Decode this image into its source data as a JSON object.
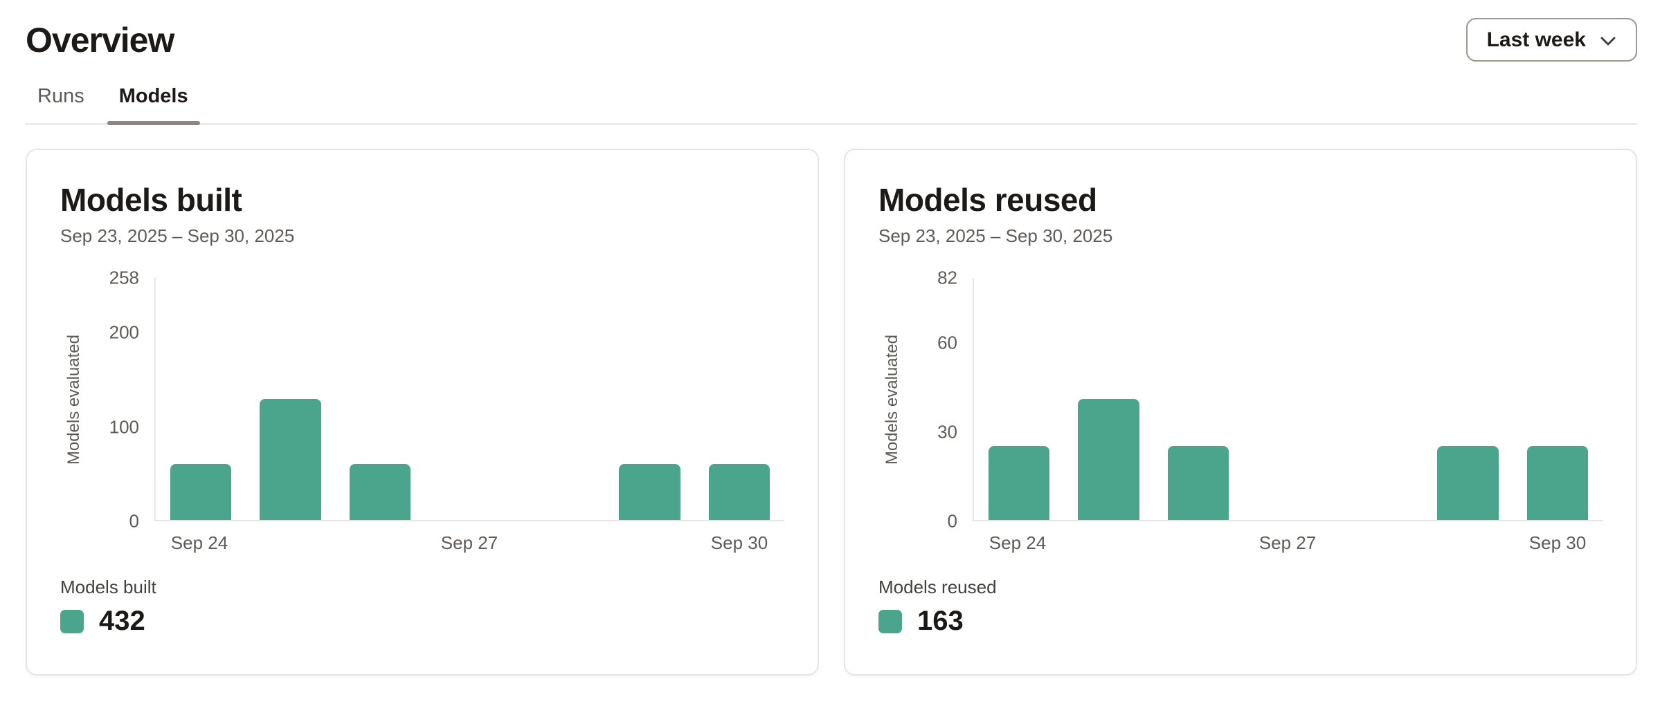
{
  "page": {
    "title": "Overview"
  },
  "toolbar": {
    "range_selector_label": "Last week",
    "chevron_icon": "chevron-down"
  },
  "tabs": [
    {
      "label": "Runs",
      "active": false
    },
    {
      "label": "Models",
      "active": true
    }
  ],
  "colors": {
    "accent_green": "#4ba58c",
    "text_primary": "#1c1917",
    "text_secondary": "#5f5a55",
    "border_light": "#e7e5e4",
    "tab_underline": "#8b8681"
  },
  "chart_data": [
    {
      "type": "bar",
      "title": "Models built",
      "subtitle": "Sep 23, 2025 – Sep 30, 2025",
      "ylabel": "Models evaluated",
      "categories": [
        "Sep 24",
        "Sep 25",
        "Sep 26",
        "Sep 27",
        "Sep 28",
        "Sep 29",
        "Sep 30"
      ],
      "values": [
        60,
        129,
        60,
        0,
        0,
        60,
        60
      ],
      "ylim": [
        0,
        258
      ],
      "yticks": [
        0,
        100,
        200,
        258
      ],
      "xticks": [
        "Sep 24",
        "Sep 27",
        "Sep 30"
      ],
      "bar_color": "#4ba58c",
      "grid": false,
      "legend_position": "bottom-left",
      "legend": {
        "label": "Models built",
        "total": "432"
      }
    },
    {
      "type": "bar",
      "title": "Models reused",
      "subtitle": "Sep 23, 2025 – Sep 30, 2025",
      "ylabel": "Models evaluated",
      "categories": [
        "Sep 24",
        "Sep 25",
        "Sep 26",
        "Sep 27",
        "Sep 28",
        "Sep 29",
        "Sep 30"
      ],
      "values": [
        25,
        41,
        25,
        0,
        0,
        25,
        25
      ],
      "ylim": [
        0,
        82
      ],
      "yticks": [
        0,
        30,
        60,
        82
      ],
      "xticks": [
        "Sep 24",
        "Sep 27",
        "Sep 30"
      ],
      "bar_color": "#4ba58c",
      "grid": false,
      "legend_position": "bottom-left",
      "legend": {
        "label": "Models reused",
        "total": "163"
      }
    }
  ]
}
